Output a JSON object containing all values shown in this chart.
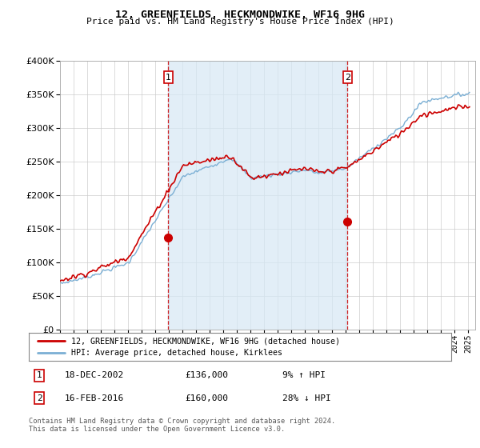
{
  "title": "12, GREENFIELDS, HECKMONDWIKE, WF16 9HG",
  "subtitle": "Price paid vs. HM Land Registry's House Price Index (HPI)",
  "legend_label_red": "12, GREENFIELDS, HECKMONDWIKE, WF16 9HG (detached house)",
  "legend_label_blue": "HPI: Average price, detached house, Kirklees",
  "annotation1_date": "18-DEC-2002",
  "annotation1_price": "£136,000",
  "annotation1_hpi": "9% ↑ HPI",
  "annotation2_date": "16-FEB-2016",
  "annotation2_price": "£160,000",
  "annotation2_hpi": "28% ↓ HPI",
  "footnote": "Contains HM Land Registry data © Crown copyright and database right 2024.\nThis data is licensed under the Open Government Licence v3.0.",
  "ylim": [
    0,
    400000
  ],
  "yticks": [
    0,
    50000,
    100000,
    150000,
    200000,
    250000,
    300000,
    350000,
    400000
  ],
  "sale1_year": 2002.96,
  "sale1_price": 136000,
  "sale2_year": 2016.12,
  "sale2_price": 160000,
  "red_color": "#cc0000",
  "blue_color": "#7bafd4",
  "blue_fill": "#d6e8f5",
  "vline_color": "#cc0000",
  "background_color": "#ffffff",
  "grid_color": "#cccccc"
}
